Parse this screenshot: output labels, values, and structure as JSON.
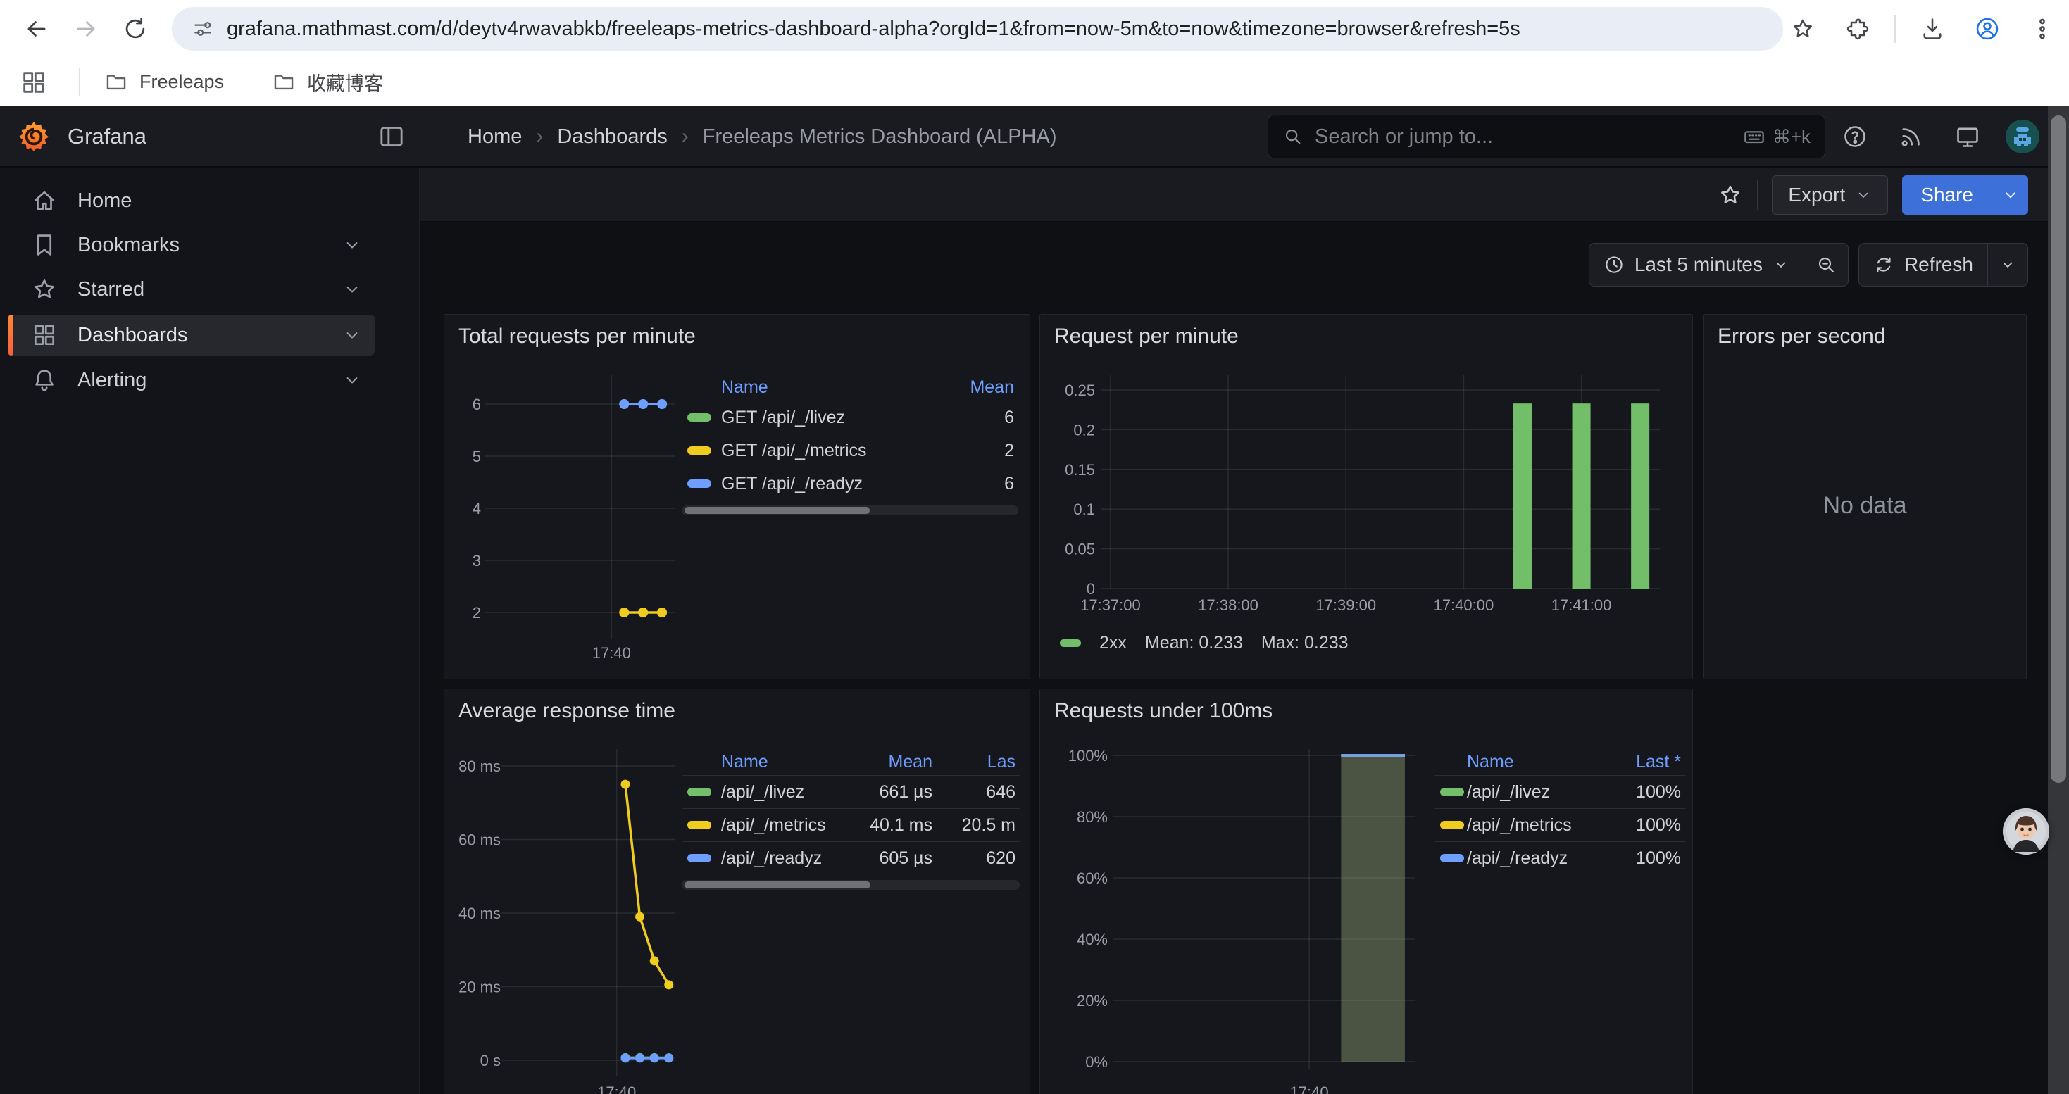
{
  "browser": {
    "url": "grafana.mathmast.com/d/deytv4rwavabkb/freeleaps-metrics-dashboard-alpha?orgId=1&from=now-5m&to=now&timezone=browser&refresh=5s",
    "bookmarks": [
      {
        "label": "Freeleaps"
      },
      {
        "label": "收藏博客"
      }
    ]
  },
  "grafana": {
    "brand": "Grafana",
    "breadcrumb": {
      "separator": "›",
      "items": [
        "Home",
        "Dashboards",
        "Freeleaps Metrics Dashboard (ALPHA)"
      ]
    },
    "search": {
      "placeholder": "Search or jump to...",
      "shortcut": "⌘+k"
    },
    "actions": {
      "export_label": "Export",
      "share_label": "Share"
    },
    "timebar": {
      "range_label": "Last 5 minutes",
      "refresh_label": "Refresh"
    },
    "sidebar": {
      "items": [
        {
          "label": "Home",
          "icon": "home-icon",
          "expandable": false,
          "active": false
        },
        {
          "label": "Bookmarks",
          "icon": "bookmark-icon",
          "expandable": true,
          "active": false
        },
        {
          "label": "Starred",
          "icon": "star-icon",
          "expandable": true,
          "active": false
        },
        {
          "label": "Dashboards",
          "icon": "apps-icon",
          "expandable": true,
          "active": true
        },
        {
          "label": "Alerting",
          "icon": "bell-icon",
          "expandable": true,
          "active": false
        }
      ]
    }
  },
  "colors": {
    "accent_blue": "#3D71D9",
    "legend_header_blue": "#6E9FFF",
    "series_green": "#73BF69",
    "series_yellow": "#F0CC1F",
    "series_blue": "#6E9FFF",
    "active_indicator_top": "#FF8833",
    "active_indicator_bottom": "#F55F3E"
  },
  "chart_data": [
    {
      "id": "total-requests-per-minute",
      "type": "line",
      "title": "Total requests per minute",
      "x_domain": [
        "17:36:40",
        "17:41:40"
      ],
      "x_ticks": [
        {
          "time": "17:40:00",
          "label": "17:40"
        }
      ],
      "y_ticks": [
        {
          "v": 6,
          "label": "6"
        },
        {
          "v": 5,
          "label": "5"
        },
        {
          "v": 4,
          "label": "4"
        },
        {
          "v": 3,
          "label": "3"
        },
        {
          "v": 2,
          "label": "2"
        }
      ],
      "series": [
        {
          "name": "GET /api/_/livez",
          "color": "#73BF69",
          "points": [
            [
              "17:40:20",
              6
            ],
            [
              "17:40:50",
              6
            ],
            [
              "17:41:20",
              6
            ]
          ],
          "legend_values": [
            "6"
          ]
        },
        {
          "name": "GET /api/_/metrics",
          "color": "#F0CC1F",
          "points": [
            [
              "17:40:20",
              2
            ],
            [
              "17:40:50",
              2
            ],
            [
              "17:41:20",
              2
            ]
          ],
          "legend_values": [
            "2"
          ]
        },
        {
          "name": "GET /api/_/readyz",
          "color": "#6E9FFF",
          "points": [
            [
              "17:40:20",
              6
            ],
            [
              "17:40:50",
              6
            ],
            [
              "17:41:20",
              6
            ]
          ],
          "legend_values": [
            "6"
          ]
        }
      ],
      "legend": {
        "placement": "right",
        "columns": [
          "Name",
          "Mean"
        ],
        "scrollbar": true
      }
    },
    {
      "id": "request-per-minute",
      "type": "bar",
      "title": "Request per minute",
      "x_domain": [
        "17:36:55",
        "17:41:40"
      ],
      "x_ticks": [
        {
          "time": "17:37:00",
          "label": "17:37:00"
        },
        {
          "time": "17:38:00",
          "label": "17:38:00"
        },
        {
          "time": "17:39:00",
          "label": "17:39:00"
        },
        {
          "time": "17:40:00",
          "label": "17:40:00"
        },
        {
          "time": "17:41:00",
          "label": "17:41:00"
        }
      ],
      "y_ticks": [
        {
          "v": 0.25,
          "label": "0.25"
        },
        {
          "v": 0.2,
          "label": "0.2"
        },
        {
          "v": 0.15,
          "label": "0.15"
        },
        {
          "v": 0.1,
          "label": "0.1"
        },
        {
          "v": 0.05,
          "label": "0.05"
        },
        {
          "v": 0,
          "label": "0"
        }
      ],
      "series": [
        {
          "name": "2xx",
          "color": "#73BF69",
          "points": [
            [
              "17:40:30",
              0.233
            ],
            [
              "17:41:00",
              0.233
            ],
            [
              "17:41:30",
              0.233
            ]
          ]
        }
      ],
      "legend": {
        "placement": "bottom",
        "entries": [
          {
            "name": "2xx",
            "stats": [
              "Mean: 0.233",
              "Max: 0.233"
            ]
          }
        ]
      }
    },
    {
      "id": "errors-per-second",
      "type": "no-data",
      "title": "Errors per second",
      "message": "No data"
    },
    {
      "id": "average-response-time",
      "type": "line",
      "title": "Average response time",
      "x_domain": [
        "17:36:40",
        "17:41:40"
      ],
      "x_ticks": [
        {
          "time": "17:40:00",
          "label": "17:40"
        }
      ],
      "y_ticks": [
        {
          "v": 80,
          "label": "80 ms"
        },
        {
          "v": 60,
          "label": "60 ms"
        },
        {
          "v": 40,
          "label": "40 ms"
        },
        {
          "v": 20,
          "label": "20 ms"
        },
        {
          "v": 0,
          "label": "0 s"
        }
      ],
      "series": [
        {
          "name": "/api/_/livez",
          "color": "#73BF69",
          "points": [
            [
              "17:40:15",
              0.7
            ],
            [
              "17:40:40",
              0.7
            ],
            [
              "17:41:05",
              0.7
            ],
            [
              "17:41:30",
              0.65
            ]
          ],
          "legend_values": [
            "661 µs",
            "646"
          ]
        },
        {
          "name": "/api/_/metrics",
          "color": "#F0CC1F",
          "points": [
            [
              "17:40:15",
              75
            ],
            [
              "17:40:40",
              39
            ],
            [
              "17:41:05",
              27
            ],
            [
              "17:41:30",
              20.5
            ]
          ],
          "legend_values": [
            "40.1 ms",
            "20.5 m"
          ]
        },
        {
          "name": "/api/_/readyz",
          "color": "#6E9FFF",
          "points": [
            [
              "17:40:15",
              0.6
            ],
            [
              "17:40:40",
              0.6
            ],
            [
              "17:41:05",
              0.6
            ],
            [
              "17:41:30",
              0.62
            ]
          ],
          "legend_values": [
            "605 µs",
            "620"
          ]
        }
      ],
      "legend": {
        "placement": "right",
        "columns": [
          "Name",
          "Mean",
          "Las"
        ],
        "scrollbar": true
      }
    },
    {
      "id": "requests-under-100ms",
      "type": "area",
      "title": "Requests under 100ms",
      "x_domain": [
        "17:36:55",
        "17:41:40"
      ],
      "x_ticks": [
        {
          "time": "17:40:00",
          "label": "17:40"
        }
      ],
      "y_ticks": [
        {
          "v": 100,
          "label": "100%"
        },
        {
          "v": 80,
          "label": "80%"
        },
        {
          "v": 60,
          "label": "60%"
        },
        {
          "v": 40,
          "label": "40%"
        },
        {
          "v": 20,
          "label": "20%"
        },
        {
          "v": 0,
          "label": "0%"
        }
      ],
      "series": [
        {
          "name": "/api/_/livez",
          "color": "#73BF69",
          "points": [
            [
              "17:40:30",
              100
            ],
            [
              "17:41:30",
              100
            ]
          ],
          "legend_values": [
            "100%"
          ]
        },
        {
          "name": "/api/_/metrics",
          "color": "#F0CC1F",
          "points": [
            [
              "17:40:30",
              100
            ],
            [
              "17:41:30",
              100
            ]
          ],
          "legend_values": [
            "100%"
          ]
        },
        {
          "name": "/api/_/readyz",
          "color": "#6E9FFF",
          "points": [
            [
              "17:40:30",
              100
            ],
            [
              "17:41:30",
              100
            ]
          ],
          "legend_values": [
            "100%"
          ]
        }
      ],
      "area_fill": "rgba(178,196,138,0.35)",
      "legend": {
        "placement": "right",
        "columns": [
          "Name",
          "Last *"
        ],
        "scrollbar": false
      }
    }
  ]
}
